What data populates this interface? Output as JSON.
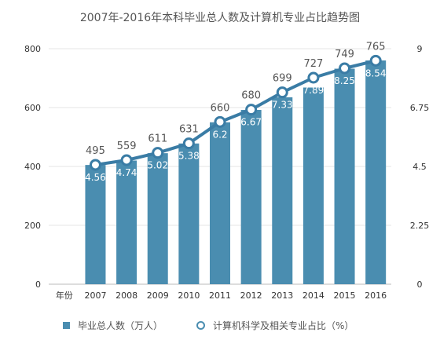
{
  "chart_data": {
    "type": "bar",
    "title": "2007年-2016年本科毕业总人数及计算机专业占比趋势图",
    "categories": [
      "年份",
      "2007",
      "2008",
      "2009",
      "2010",
      "2011",
      "2012",
      "2013",
      "2014",
      "2015",
      "2016"
    ],
    "series": [
      {
        "name": "毕业总人数（万人）",
        "type": "bar",
        "axis": "left",
        "values": [
          null,
          405,
          420,
          445,
          478,
          550,
          592,
          635,
          668,
          732,
          760
        ],
        "labels": [
          null,
          "4.56",
          "4.74",
          "5.02",
          "5.38",
          "6.2",
          "6.67",
          "7.33",
          "7.89",
          "8.25",
          "8.54"
        ]
      },
      {
        "name": "计算机科学及相关专业占比（%）",
        "type": "line",
        "axis": "right",
        "values": [
          null,
          4.56,
          4.74,
          5.02,
          5.38,
          6.2,
          6.67,
          7.33,
          7.89,
          8.25,
          8.54
        ],
        "labels": [
          null,
          "495",
          "559",
          "611",
          "631",
          "660",
          "680",
          "699",
          "727",
          "749",
          "765"
        ]
      }
    ],
    "y_left": {
      "ylim": [
        0,
        800
      ],
      "ticks": [
        "0",
        "200",
        "400",
        "600",
        "800"
      ]
    },
    "y_right": {
      "ylim": [
        0,
        9
      ],
      "ticks": [
        "0",
        "2.25",
        "4.5",
        "6.75",
        "9"
      ]
    },
    "grid": true,
    "legend_position": "bottom",
    "colors": {
      "bar": "#4a8db0",
      "line": "#3a7ca5",
      "grid": "#e6e6e6",
      "text": "#555555"
    }
  }
}
